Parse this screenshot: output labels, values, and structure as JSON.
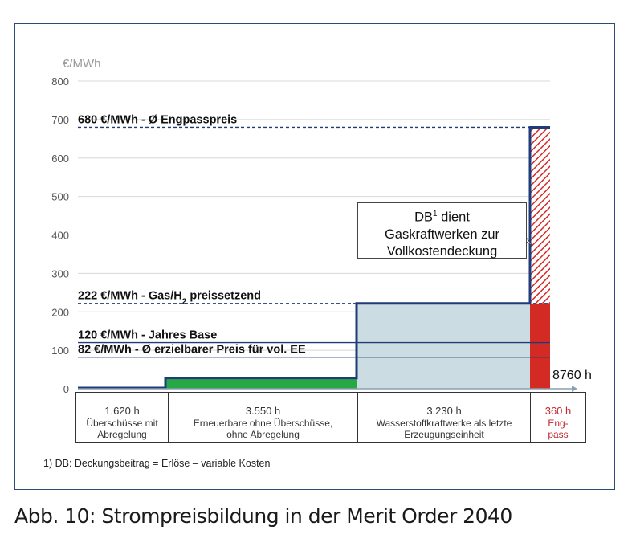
{
  "caption": "Abb. 10:  Strompreisbildung in der Merit Order 2040",
  "footnote": "1) DB: Deckungsbeitrag = Erlöse – variable Kosten",
  "callout": {
    "line1": "DB",
    "sup": "1",
    "line1_rest": " dient",
    "line2": "Gaskraftwerken zur",
    "line3": "Vollkostendeckung"
  },
  "segments": [
    {
      "hours": "1.620 h",
      "label1": "Überschüsse mit",
      "label2": "Abregelung"
    },
    {
      "hours": "3.550 h",
      "label1": "Erneuerbare ohne Überschüsse,",
      "label2": "ohne Abregelung"
    },
    {
      "hours": "3.230 h",
      "label1": "Wasserstoffkraftwerke als letzte",
      "label2": "Erzeugungseinheit"
    },
    {
      "hours": "360 h",
      "label1": "Eng-",
      "label2": "pass"
    }
  ],
  "colors": {
    "step_line": "#1f3c7a",
    "green": "#27a745",
    "teal_fill": "#cbdde3",
    "red": "#d42a24",
    "hatch": "#d42a24",
    "grid": "#d8d8d8",
    "axis_text": "#555555"
  },
  "chart_data": {
    "type": "area",
    "ylabel": "€/MWh",
    "ylim": [
      0,
      800
    ],
    "yticks": [
      0,
      100,
      200,
      300,
      400,
      500,
      600,
      700,
      800
    ],
    "xlim": [
      0,
      8760
    ],
    "x_end_label": "8760 h",
    "steps": [
      {
        "x_start": 0,
        "x_end": 1620,
        "price": 2
      },
      {
        "x_start": 1620,
        "x_end": 5170,
        "price": 28
      },
      {
        "x_start": 5170,
        "x_end": 8400,
        "price": 222
      },
      {
        "x_start": 8400,
        "x_end": 8760,
        "price": 680
      }
    ],
    "reference_lines": [
      {
        "value": 680,
        "label": "680 €/MWh - Ø Engpasspreis",
        "style": "dashed"
      },
      {
        "value": 222,
        "label_pre": "222 €/MWh - Gas/H",
        "label_sub": "2",
        "label_post": " preissetzend",
        "style": "dashed"
      },
      {
        "value": 120,
        "label": "120 €/MWh - Jahres Base",
        "style": "solid"
      },
      {
        "value": 82,
        "label": "82 €/MWh -  Ø erzielbarer Preis für vol. EE",
        "style": "solid"
      }
    ]
  }
}
